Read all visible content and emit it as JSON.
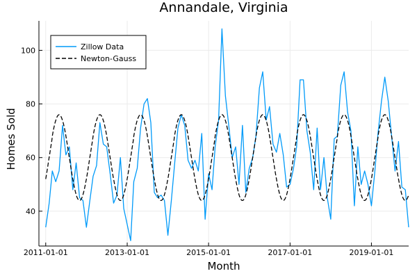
{
  "chart_data": {
    "type": "line",
    "title": "Annandale, Virginia",
    "xlabel": "Month",
    "ylabel": "Homes Sold",
    "xlim": [
      "2010-11-01",
      "2019-12-01"
    ],
    "ylim": [
      27,
      111
    ],
    "x_ticks": [
      "2011-01-01",
      "2013-01-01",
      "2015-01-01",
      "2017-01-01",
      "2019-01-01"
    ],
    "y_ticks": [
      40,
      60,
      80,
      100
    ],
    "grid": true,
    "legend": {
      "placement": "top-left",
      "frame": true
    },
    "series": [
      {
        "name": "Zillow Data",
        "color": "#009af9",
        "style": "solid",
        "start": "2011-01-01",
        "frequency": "monthly",
        "values": [
          34,
          43,
          55,
          51,
          55,
          72,
          61,
          64,
          48,
          58,
          45,
          44,
          34,
          44,
          53,
          57,
          73,
          65,
          64,
          54,
          43,
          46,
          60,
          41,
          35,
          29,
          51,
          56,
          71,
          80,
          82,
          73,
          47,
          45,
          46,
          44,
          31,
          44,
          57,
          71,
          76,
          72,
          59,
          56,
          59,
          55,
          69,
          37,
          54,
          48,
          64,
          74,
          108,
          83,
          72,
          60,
          64,
          50,
          72,
          47,
          56,
          60,
          68,
          86,
          92,
          74,
          79,
          65,
          62,
          69,
          61,
          49,
          50,
          56,
          64,
          89,
          89,
          70,
          62,
          48,
          71,
          48,
          60,
          45,
          37,
          67,
          68,
          87,
          92,
          77,
          70,
          42,
          64,
          50,
          55,
          50,
          42,
          55,
          69,
          81,
          90,
          81,
          68,
          55,
          66,
          49,
          48,
          34
        ]
      },
      {
        "name": "Newton-Gauss",
        "color": "#000000",
        "style": "dashed",
        "model": {
          "type": "sinusoid",
          "mean": 60,
          "amplitude": 16,
          "period_months": 12,
          "peak_month": 4,
          "start": "2011-01-01",
          "end": "2019-12-01"
        }
      }
    ]
  }
}
